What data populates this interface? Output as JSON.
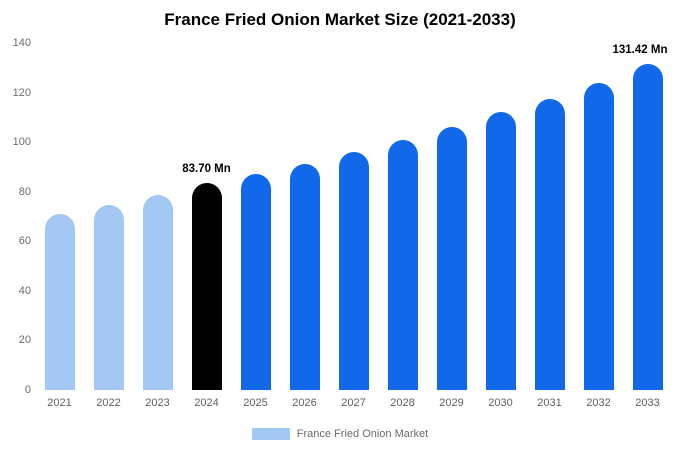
{
  "chart_data": {
    "type": "bar",
    "title": "France Fried Onion Market Size (2021-2033)",
    "categories": [
      "2021",
      "2022",
      "2023",
      "2024",
      "2025",
      "2026",
      "2027",
      "2028",
      "2029",
      "2030",
      "2031",
      "2032",
      "2033"
    ],
    "values": [
      71,
      74.5,
      78.5,
      83.7,
      87,
      91,
      96,
      101,
      106,
      112,
      117.5,
      124,
      131.42
    ],
    "bar_roles": [
      "historical",
      "historical",
      "historical",
      "current",
      "forecast",
      "forecast",
      "forecast",
      "forecast",
      "forecast",
      "forecast",
      "forecast",
      "forecast",
      "forecast"
    ],
    "bar_colors": {
      "historical": "#a2c8f3",
      "current": "#000000",
      "forecast": "#1168e9"
    },
    "annotations": [
      {
        "index": 3,
        "text": "83.70 Mn"
      },
      {
        "index": 12,
        "text": "131.42 Mn"
      }
    ],
    "ylim": [
      0,
      140
    ],
    "yticks": [
      0,
      20,
      40,
      60,
      80,
      100,
      120,
      140
    ],
    "grid": false,
    "legend_position": "bottom",
    "legend": {
      "label": "France Fried Onion Market",
      "color": "#a2c8f3"
    }
  }
}
